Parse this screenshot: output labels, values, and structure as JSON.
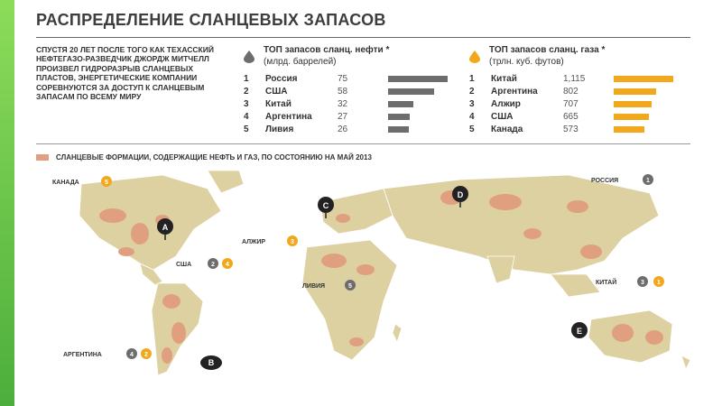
{
  "title": "РАСПРЕДЕЛЕНИЕ СЛАНЦЕВЫХ ЗАПАСОВ",
  "intro": "СПУСТЯ 20 ЛЕТ ПОСЛЕ ТОГО КАК ТЕХАССКИЙ НЕФТЕГАЗО-РАЗВЕДЧИК ДЖОРДЖ МИТЧЕЛЛ ПРОИЗВЕЛ ГИДРОРАЗРЫВ СЛАНЦЕВЫХ ПЛАСТОВ, ЭНЕРГЕТИЧЕСКИЕ КОМПАНИИ СОРЕВНУЮТСЯ ЗА ДОСТУП К СЛАНЦЕВЫМ ЗАПАСАМ ПО ВСЕМУ МИРУ",
  "oil": {
    "heading1": "ТОП запасов сланц. нефти *",
    "heading2": "(млрд. баррелей)",
    "color": "#6d6d6d",
    "rows": [
      {
        "rank": "1",
        "name": "Россия",
        "value": "75",
        "n": 75
      },
      {
        "rank": "2",
        "name": "США",
        "value": "58",
        "n": 58
      },
      {
        "rank": "3",
        "name": "Китай",
        "value": "32",
        "n": 32
      },
      {
        "rank": "4",
        "name": "Аргентина",
        "value": "27",
        "n": 27
      },
      {
        "rank": "5",
        "name": "Ливия",
        "value": "26",
        "n": 26
      }
    ]
  },
  "gas": {
    "heading1": "ТОП запасов сланц. газа *",
    "heading2": "(трлн. куб. футов)",
    "color": "#f2a81d",
    "rows": [
      {
        "rank": "1",
        "name": "Китай",
        "value": "1,115",
        "n": 1115
      },
      {
        "rank": "2",
        "name": "Аргентина",
        "value": "802",
        "n": 802
      },
      {
        "rank": "3",
        "name": "Алжир",
        "value": "707",
        "n": 707
      },
      {
        "rank": "4",
        "name": "США",
        "value": "665",
        "n": 665
      },
      {
        "rank": "5",
        "name": "Канада",
        "value": "573",
        "n": 573
      }
    ]
  },
  "legend": "СЛАНЦЕВЫЕ ФОРМАЦИИ, СОДЕРЖАЩИЕ НЕФТЬ И ГАЗ, ПО СОСТОЯНИЮ НА МАЙ 2013",
  "map": {
    "countries": [
      {
        "id": "canada",
        "label": "КАНАДА",
        "oil": "",
        "gas": "5"
      },
      {
        "id": "usa",
        "label": "США",
        "oil": "2",
        "gas": "4"
      },
      {
        "id": "argentina",
        "label": "АРГЕНТИНА",
        "oil": "4",
        "gas": "2"
      },
      {
        "id": "algeria",
        "label": "АЛЖИР",
        "oil": "",
        "gas": "3"
      },
      {
        "id": "libya",
        "label": "ЛИВИЯ",
        "oil": "5",
        "gas": ""
      },
      {
        "id": "russia",
        "label": "РОССИЯ",
        "oil": "1",
        "gas": ""
      },
      {
        "id": "china",
        "label": "КИТАЙ",
        "oil": "3",
        "gas": "1"
      }
    ],
    "letters": [
      "A",
      "B",
      "C",
      "D",
      "E"
    ]
  }
}
